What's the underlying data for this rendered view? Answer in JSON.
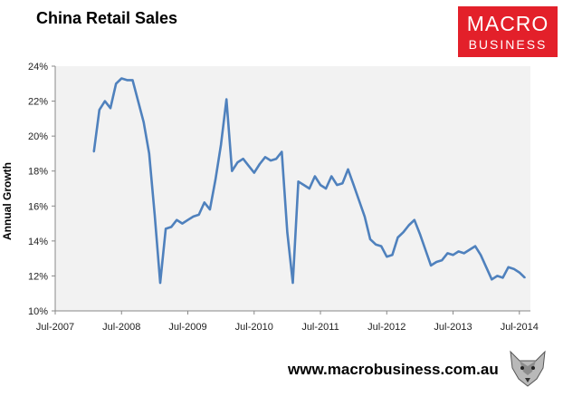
{
  "header": {
    "title": "China Retail Sales"
  },
  "logo": {
    "line1": "MACRO",
    "line2": "BUSINESS",
    "color": "#e3202a",
    "icon": "macrobusiness-logo"
  },
  "footer": {
    "url": "www.macrobusiness.com.au",
    "icon": "fox-icon"
  },
  "chart_data": {
    "type": "line",
    "title": "China Retail Sales",
    "xlabel": "",
    "ylabel": "Annual Growth",
    "ylim": [
      10,
      24
    ],
    "y_ticks": [
      "10%",
      "12%",
      "14%",
      "16%",
      "18%",
      "20%",
      "22%",
      "24%"
    ],
    "x_ticks": [
      "Jul-2007",
      "Jul-2008",
      "Jul-2009",
      "Jul-2010",
      "Jul-2011",
      "Jul-2012",
      "Jul-2013",
      "Jul-2014"
    ],
    "xlim": [
      "2007-07",
      "2014-09"
    ],
    "grid": false,
    "legend": "none",
    "line_color": "#4f81bd",
    "plot_background": "#f2f2f2",
    "series": [
      {
        "x": [
          "2008-02",
          "2008-03",
          "2008-04",
          "2008-05",
          "2008-06",
          "2008-07",
          "2008-08",
          "2008-09",
          "2008-10",
          "2008-11",
          "2008-12",
          "2009-01",
          "2009-02",
          "2009-03",
          "2009-04",
          "2009-05",
          "2009-06",
          "2009-07",
          "2009-08",
          "2009-09",
          "2009-10",
          "2009-11",
          "2009-12",
          "2010-01",
          "2010-02",
          "2010-03",
          "2010-04",
          "2010-05",
          "2010-06",
          "2010-07",
          "2010-08",
          "2010-09",
          "2010-10",
          "2010-11",
          "2010-12",
          "2011-01",
          "2011-02",
          "2011-03",
          "2011-04",
          "2011-05",
          "2011-06",
          "2011-07",
          "2011-08",
          "2011-09",
          "2011-10",
          "2011-11",
          "2011-12",
          "2012-01",
          "2012-02",
          "2012-03",
          "2012-04",
          "2012-05",
          "2012-06",
          "2012-07",
          "2012-08",
          "2012-09",
          "2012-10",
          "2012-11",
          "2012-12",
          "2013-01",
          "2013-02",
          "2013-03",
          "2013-04",
          "2013-05",
          "2013-06",
          "2013-07",
          "2013-08",
          "2013-09",
          "2013-10",
          "2013-11",
          "2013-12",
          "2014-01",
          "2014-02",
          "2014-03",
          "2014-04",
          "2014-05",
          "2014-06",
          "2014-07",
          "2014-08"
        ],
        "values": [
          19.1,
          21.5,
          22.0,
          21.6,
          23.0,
          23.3,
          23.2,
          23.2,
          22.0,
          20.8,
          19.0,
          15.5,
          11.6,
          14.7,
          14.8,
          15.2,
          15.0,
          15.2,
          15.4,
          15.5,
          16.2,
          15.8,
          17.5,
          19.5,
          22.1,
          18.0,
          18.5,
          18.7,
          18.3,
          17.9,
          18.4,
          18.8,
          18.6,
          18.7,
          19.1,
          14.5,
          11.6,
          17.4,
          17.2,
          17.0,
          17.7,
          17.2,
          17.0,
          17.7,
          17.2,
          17.3,
          18.1,
          17.2,
          16.3,
          15.4,
          14.1,
          13.8,
          13.7,
          13.1,
          13.2,
          14.2,
          14.5,
          14.9,
          15.2,
          14.4,
          13.5,
          12.6,
          12.8,
          12.9,
          13.3,
          13.2,
          13.4,
          13.3,
          13.5,
          13.7,
          13.2,
          12.5,
          11.8,
          12.0,
          11.9,
          12.5,
          12.4,
          12.2,
          11.9
        ]
      }
    ]
  }
}
